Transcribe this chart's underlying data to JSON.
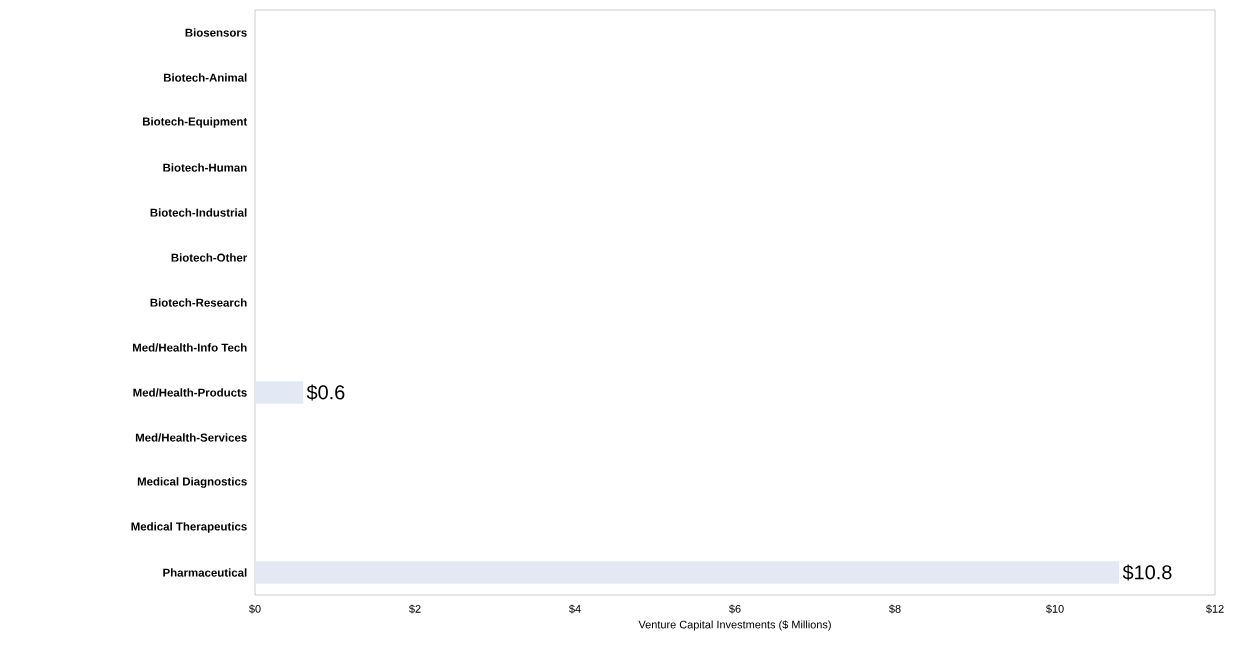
{
  "chart_data": {
    "type": "bar",
    "orientation": "horizontal",
    "xlabel": "Venture Capital Investments ($ Millions)",
    "categories": [
      "Biosensors",
      "Biotech-Animal",
      "Biotech-Equipment",
      "Biotech-Human",
      "Biotech-Industrial",
      "Biotech-Other",
      "Biotech-Research",
      "Med/Health-Info Tech",
      "Med/Health-Products",
      "Med/Health-Services",
      "Medical Diagnostics",
      "Medical Therapeutics",
      "Pharmaceutical"
    ],
    "values": [
      0,
      0,
      0,
      0,
      0,
      0,
      0,
      0,
      0.6,
      0,
      0,
      0,
      10.8
    ],
    "value_labels": [
      null,
      null,
      null,
      null,
      null,
      null,
      null,
      null,
      "$0.6",
      null,
      null,
      null,
      "$10.8"
    ],
    "color": "#e3e9f4",
    "xlim": [
      0,
      12
    ],
    "xticks": [
      {
        "value": 0,
        "label": "$0"
      },
      {
        "value": 2,
        "label": "$2"
      },
      {
        "value": 4,
        "label": "$4"
      },
      {
        "value": 6,
        "label": "$6"
      },
      {
        "value": 8,
        "label": "$8"
      },
      {
        "value": 10,
        "label": "$10"
      },
      {
        "value": 12,
        "label": "$12"
      }
    ],
    "grid": false
  }
}
